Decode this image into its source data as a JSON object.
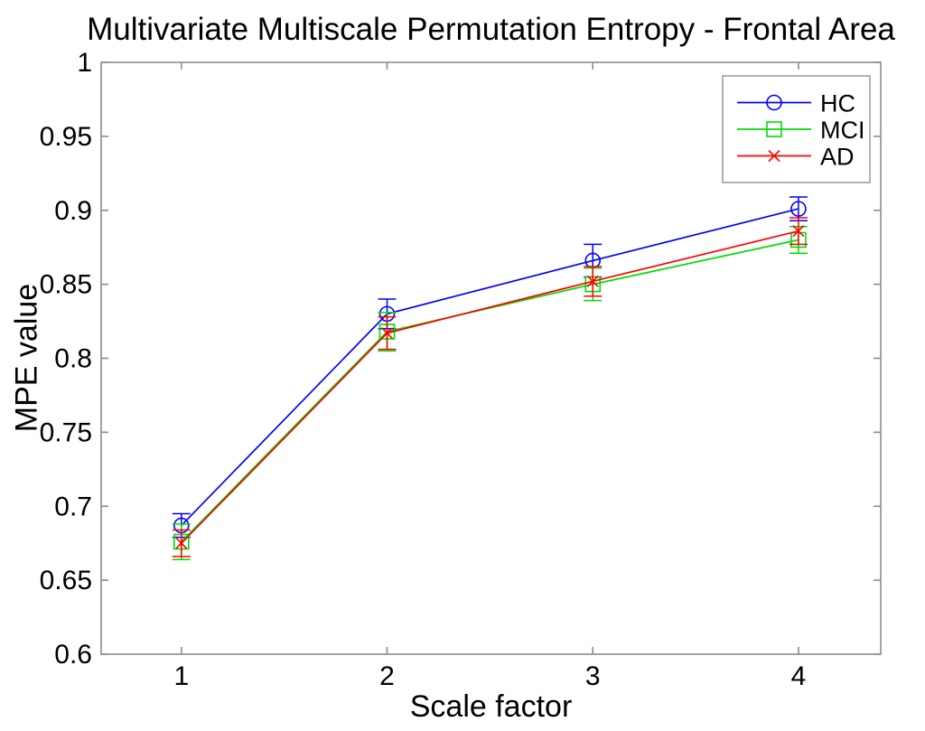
{
  "chart_data": {
    "type": "line",
    "title": "Multivariate Multiscale Permutation Entropy - Frontal Area",
    "xlabel": "Scale factor",
    "ylabel": "MPE value",
    "xlim": [
      0.61,
      4.4
    ],
    "ylim": [
      0.6,
      1.0
    ],
    "x": [
      1,
      2,
      3,
      4
    ],
    "xtick_labels": [
      "1",
      "2",
      "3",
      "4"
    ],
    "yticks": [
      0.6,
      0.65,
      0.7,
      0.75,
      0.8,
      0.85,
      0.9,
      0.95,
      1
    ],
    "ytick_labels": [
      "0.6",
      "0.65",
      "0.7",
      "0.75",
      "0.8",
      "0.85",
      "0.9",
      "0.95",
      "1"
    ],
    "grid": false,
    "legend_position": "top-right",
    "series": [
      {
        "name": "HC",
        "marker": "circle",
        "color": "#0000ff",
        "values": [
          0.687,
          0.83,
          0.866,
          0.901
        ],
        "errors": [
          0.008,
          0.01,
          0.011,
          0.008
        ]
      },
      {
        "name": "MCI",
        "marker": "square",
        "color": "#00dd00",
        "values": [
          0.676,
          0.818,
          0.85,
          0.88
        ],
        "errors": [
          0.012,
          0.013,
          0.011,
          0.009
        ]
      },
      {
        "name": "AD",
        "marker": "x",
        "color": "#ff0000",
        "values": [
          0.675,
          0.817,
          0.852,
          0.886
        ],
        "errors": [
          0.009,
          0.011,
          0.01,
          0.009
        ]
      }
    ],
    "frame_color": "#8c8c8c",
    "text_color": "#000000",
    "background": "#ffffff"
  }
}
